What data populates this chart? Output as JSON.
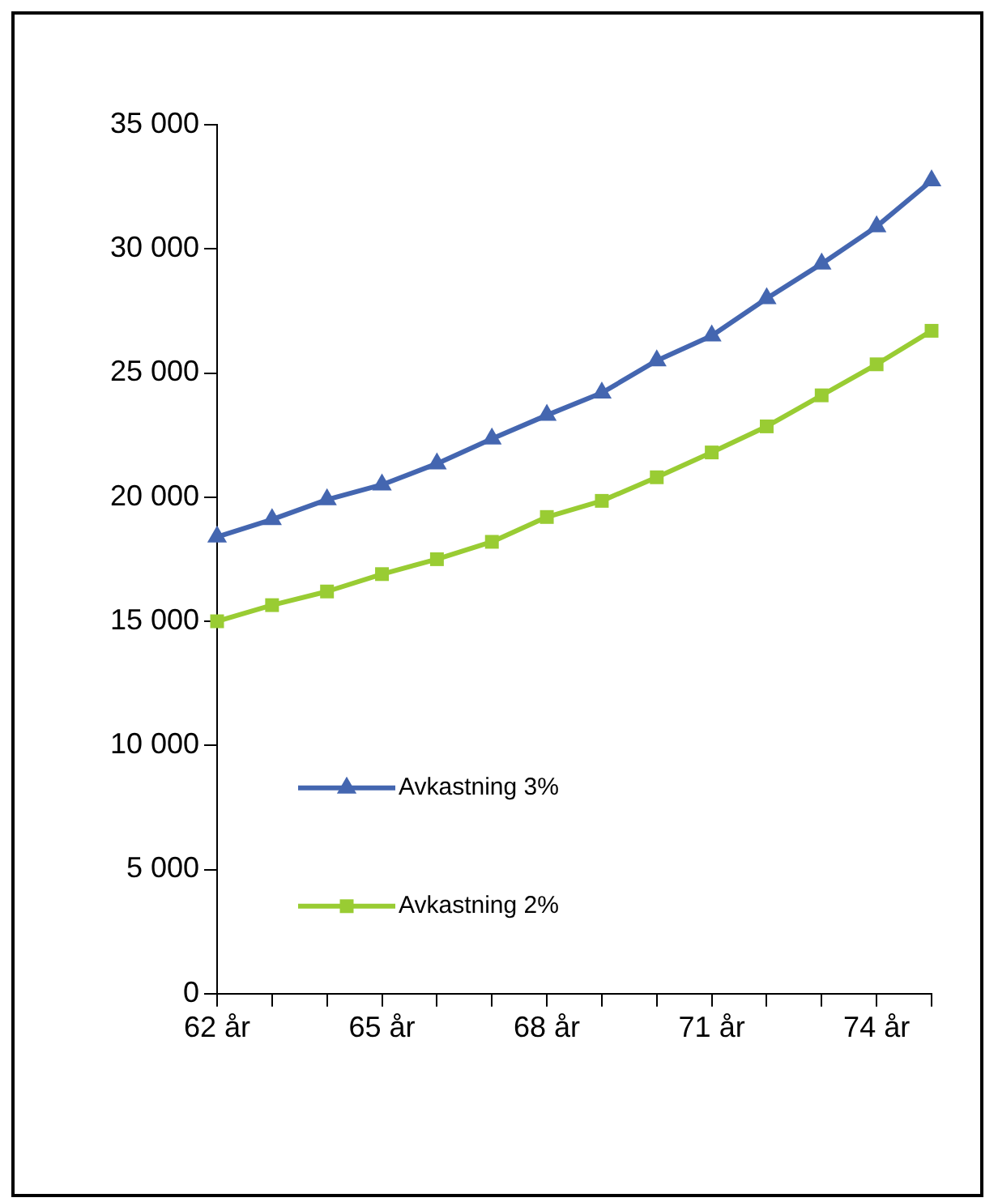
{
  "chart_data": {
    "type": "line",
    "categories": [
      "62 år",
      null,
      null,
      "65 år",
      null,
      null,
      "68 år",
      null,
      null,
      "71 år",
      null,
      null,
      "74 år",
      null
    ],
    "series": [
      {
        "name": "Avkastning 3%",
        "color": "#4466b0",
        "marker": "triangle",
        "values": [
          18400,
          19100,
          19900,
          20500,
          21350,
          22350,
          23300,
          24200,
          25500,
          26500,
          28000,
          29400,
          30900,
          32750
        ]
      },
      {
        "name": "Avkastning 2%",
        "color": "#99cc33",
        "marker": "square",
        "values": [
          15000,
          15650,
          16200,
          16900,
          17500,
          18200,
          19200,
          19850,
          20800,
          21800,
          22850,
          24100,
          25350,
          26700
        ]
      }
    ],
    "ylim": [
      0,
      35000
    ],
    "yticks": [
      {
        "value": 0,
        "label": "0"
      },
      {
        "value": 5000,
        "label": "5 000"
      },
      {
        "value": 10000,
        "label": "10 000"
      },
      {
        "value": 15000,
        "label": "15 000"
      },
      {
        "value": 20000,
        "label": "20 000"
      },
      {
        "value": 25000,
        "label": "25 000"
      },
      {
        "value": 30000,
        "label": "30 000"
      },
      {
        "value": 35000,
        "label": "35 000"
      }
    ],
    "grid": false,
    "legend": "bottom left"
  }
}
